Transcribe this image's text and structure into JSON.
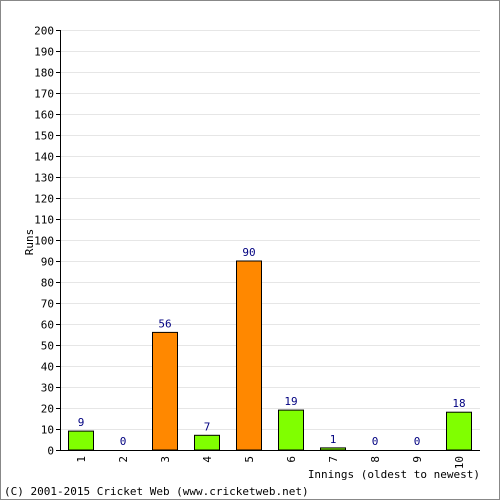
{
  "chart_data": {
    "type": "bar",
    "ylabel": "Runs",
    "xlabel": "Innings (oldest to newest)",
    "ylim": [
      0,
      200
    ],
    "y_ticks": [
      0,
      10,
      20,
      30,
      40,
      50,
      60,
      70,
      80,
      90,
      100,
      110,
      120,
      130,
      140,
      150,
      160,
      170,
      180,
      190,
      200
    ],
    "grid": true,
    "categories": [
      "1",
      "2",
      "3",
      "4",
      "5",
      "6",
      "7",
      "8",
      "9",
      "10"
    ],
    "values": [
      9,
      0,
      56,
      7,
      90,
      19,
      1,
      0,
      0,
      18
    ],
    "bar_colors": [
      "#80ff00",
      "#80ff00",
      "#ff8800",
      "#80ff00",
      "#ff8800",
      "#80ff00",
      "#80ff00",
      "#80ff00",
      "#80ff00",
      "#80ff00"
    ],
    "label_color": "#000080"
  },
  "footer": {
    "copyright": "(C) 2001-2015 Cricket Web (www.cricketweb.net)"
  }
}
